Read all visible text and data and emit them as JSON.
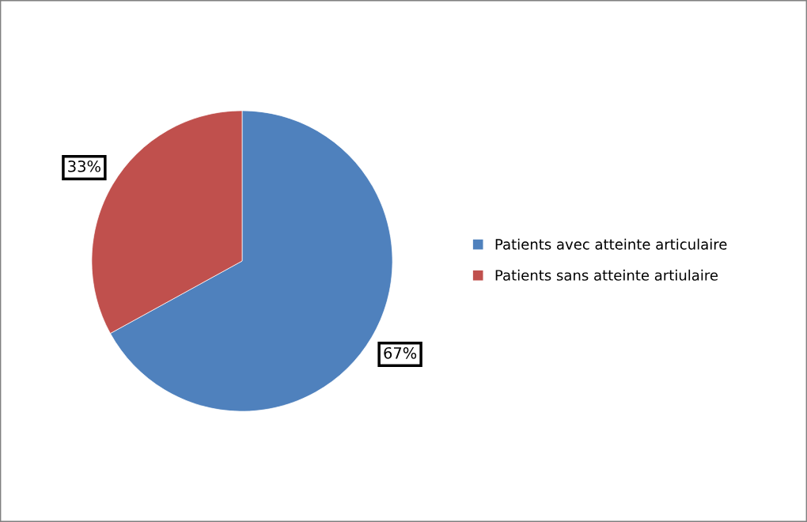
{
  "chart_data": {
    "type": "pie",
    "categories": [
      "Patients avec atteinte articulaire",
      "Patients sans atteinte artiulaire"
    ],
    "values": [
      67,
      33
    ],
    "colors": [
      "#4f81bd",
      "#c0504d"
    ],
    "value_labels": [
      "67%",
      "33%"
    ],
    "legend": "right"
  }
}
